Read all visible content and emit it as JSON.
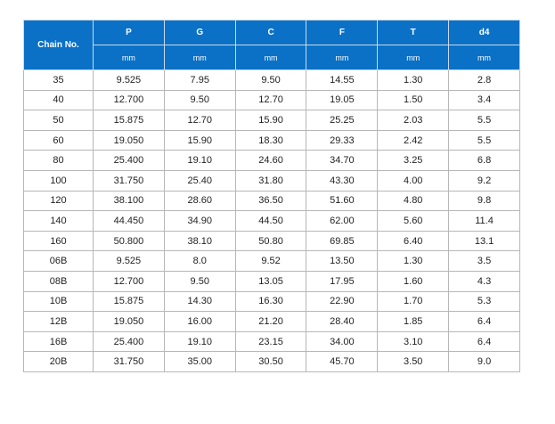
{
  "table": {
    "chain_header": "Chain No.",
    "columns": [
      {
        "name": "P",
        "unit": "mm"
      },
      {
        "name": "G",
        "unit": "mm"
      },
      {
        "name": "C",
        "unit": "mm"
      },
      {
        "name": "F",
        "unit": "mm"
      },
      {
        "name": "T",
        "unit": "mm"
      },
      {
        "name": "d4",
        "unit": "mm"
      }
    ],
    "rows": [
      [
        "35",
        "9.525",
        "7.95",
        "9.50",
        "14.55",
        "1.30",
        "2.8"
      ],
      [
        "40",
        "12.700",
        "9.50",
        "12.70",
        "19.05",
        "1.50",
        "3.4"
      ],
      [
        "50",
        "15.875",
        "12.70",
        "15.90",
        "25.25",
        "2.03",
        "5.5"
      ],
      [
        "60",
        "19.050",
        "15.90",
        "18.30",
        "29.33",
        "2.42",
        "5.5"
      ],
      [
        "80",
        "25.400",
        "19.10",
        "24.60",
        "34.70",
        "3.25",
        "6.8"
      ],
      [
        "100",
        "31.750",
        "25.40",
        "31.80",
        "43.30",
        "4.00",
        "9.2"
      ],
      [
        "120",
        "38.100",
        "28.60",
        "36.50",
        "51.60",
        "4.80",
        "9.8"
      ],
      [
        "140",
        "44.450",
        "34.90",
        "44.50",
        "62.00",
        "5.60",
        "11.4"
      ],
      [
        "160",
        "50.800",
        "38.10",
        "50.80",
        "69.85",
        "6.40",
        "13.1"
      ],
      [
        "06B",
        "9.525",
        "8.0",
        "9.52",
        "13.50",
        "1.30",
        "3.5"
      ],
      [
        "08B",
        "12.700",
        "9.50",
        "13.05",
        "17.95",
        "1.60",
        "4.3"
      ],
      [
        "10B",
        "15.875",
        "14.30",
        "16.30",
        "22.90",
        "1.70",
        "5.3"
      ],
      [
        "12B",
        "19.050",
        "16.00",
        "21.20",
        "28.40",
        "1.85",
        "6.4"
      ],
      [
        "16B",
        "25.400",
        "19.10",
        "23.15",
        "34.00",
        "3.10",
        "6.4"
      ],
      [
        "20B",
        "31.750",
        "35.00",
        "30.50",
        "45.70",
        "3.50",
        "9.0"
      ]
    ]
  },
  "colors": {
    "header_bg": "#0a71c6",
    "header_text": "#ffffff",
    "border": "#b7b7b7",
    "cell_text": "#1f1f1f"
  }
}
